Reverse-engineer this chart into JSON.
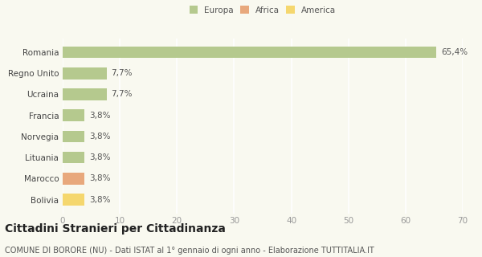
{
  "categories": [
    "Romania",
    "Regno Unito",
    "Ucraina",
    "Francia",
    "Norvegia",
    "Lituania",
    "Marocco",
    "Bolivia"
  ],
  "values": [
    65.4,
    7.7,
    7.7,
    3.8,
    3.8,
    3.8,
    3.8,
    3.8
  ],
  "labels": [
    "65,4%",
    "7,7%",
    "7,7%",
    "3,8%",
    "3,8%",
    "3,8%",
    "3,8%",
    "3,8%"
  ],
  "colors": [
    "#b5c98e",
    "#b5c98e",
    "#b5c98e",
    "#b5c98e",
    "#b5c98e",
    "#b5c98e",
    "#e8a87c",
    "#f5d76e"
  ],
  "legend": [
    {
      "label": "Europa",
      "color": "#b5c98e"
    },
    {
      "label": "Africa",
      "color": "#e8a87c"
    },
    {
      "label": "America",
      "color": "#f5d76e"
    }
  ],
  "xlim": [
    0,
    70
  ],
  "xticks": [
    0,
    10,
    20,
    30,
    40,
    50,
    60,
    70
  ],
  "title": "Cittadini Stranieri per Cittadinanza",
  "subtitle": "COMUNE DI BORORE (NU) - Dati ISTAT al 1° gennaio di ogni anno - Elaborazione TUTTITALIA.IT",
  "background_color": "#f9f9f0",
  "grid_color": "#e8e8d8",
  "bar_height": 0.55,
  "label_fontsize": 7.5,
  "tick_fontsize": 7.5,
  "title_fontsize": 10,
  "subtitle_fontsize": 7
}
